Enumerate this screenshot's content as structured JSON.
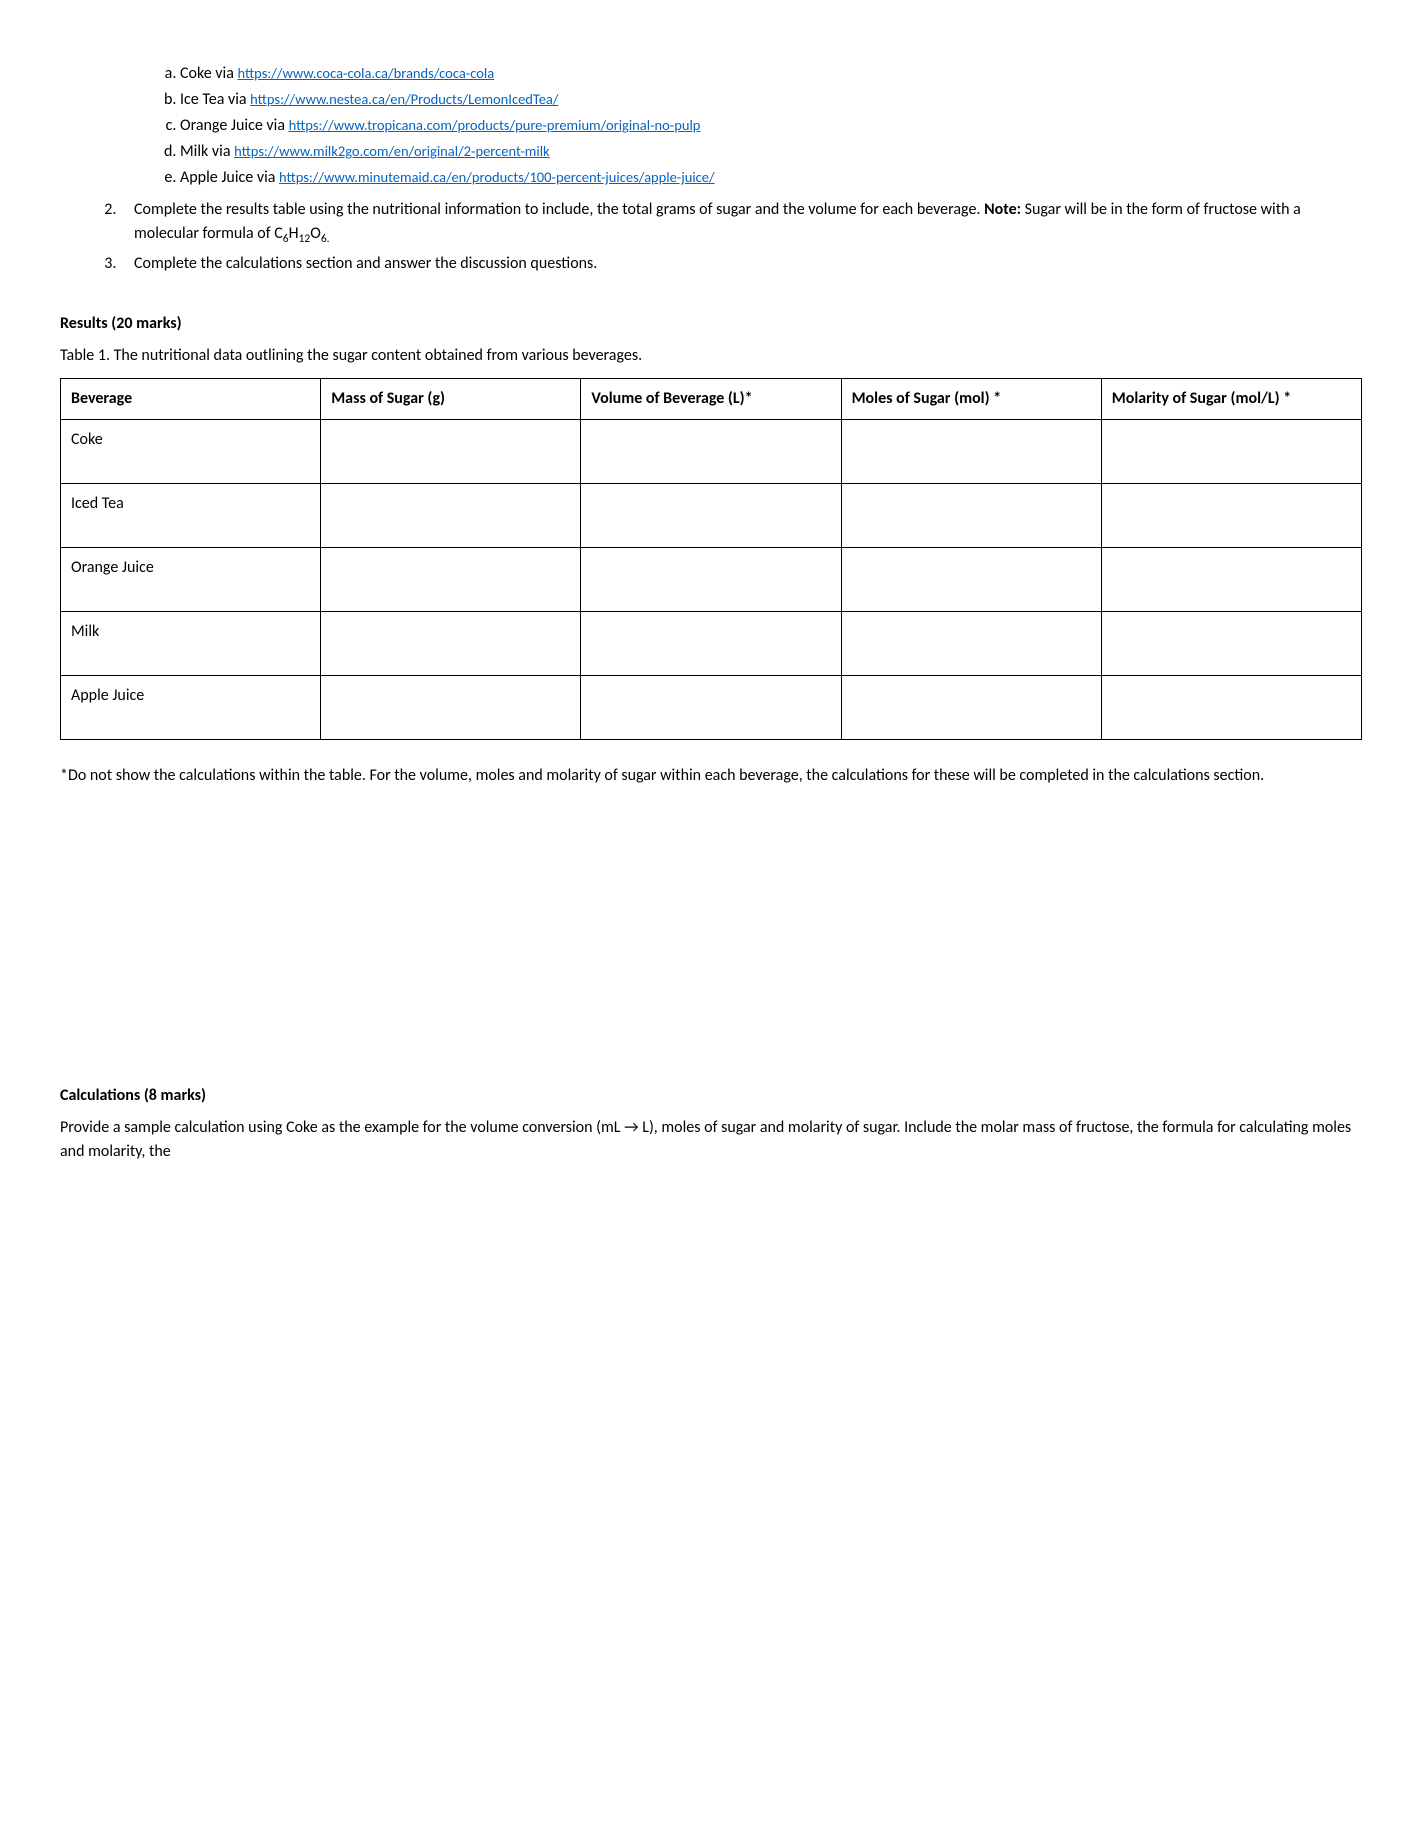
{
  "sublist": {
    "items": [
      {
        "prefix": "Coke via ",
        "url": "https://www.coca-cola.ca/brands/coca-cola"
      },
      {
        "prefix": "Ice Tea via ",
        "url": "https://www.nestea.ca/en/Products/LemonIcedTea/"
      },
      {
        "prefix": "Orange Juice via ",
        "url": "https://www.tropicana.com/products/pure-premium/original-no-pulp"
      },
      {
        "prefix": "Milk via ",
        "url": "https://www.milk2go.com/en/original/2-percent-milk"
      },
      {
        "prefix": "Apple Juice via ",
        "url": "https://www.minutemaid.ca/en/products/100-percent-juices/apple-juice/"
      }
    ]
  },
  "mainlist": {
    "item2_a": "Complete the results table using the nutritional information to include, the total grams of sugar and the volume for each beverage. ",
    "item2_note_label": "Note:",
    "item2_b": " Sugar will be in the form of fructose with a molecular formula of ",
    "item2_formula": "C6H12O6.",
    "item3": "Complete the calculations section and answer the discussion questions."
  },
  "results": {
    "heading": "Results (20 marks)",
    "caption": "Table 1. The nutritional data outlining the sugar content obtained from various beverages.",
    "columns": [
      "Beverage",
      "Mass of Sugar (g)",
      "Volume of Beverage (L)*",
      "Moles of Sugar (mol) *",
      "Molarity of Sugar (mol/L) *"
    ],
    "rows": [
      "Coke",
      "Iced Tea",
      "Orange Juice",
      "Milk",
      "Apple Juice"
    ],
    "footnote": "*Do not show the calculations within the table. For the volume, moles and molarity of sugar within each beverage, the calculations for these will be completed in the calculations section."
  },
  "calc": {
    "heading": "Calculations (8 marks)",
    "para_a": "Provide a sample calculation using Coke as the example for the volume conversion (mL ",
    "arrow": "→",
    "para_b": " L), moles of sugar and molarity of sugar. Include the molar mass of fructose, the formula for calculating moles and molarity, the"
  }
}
